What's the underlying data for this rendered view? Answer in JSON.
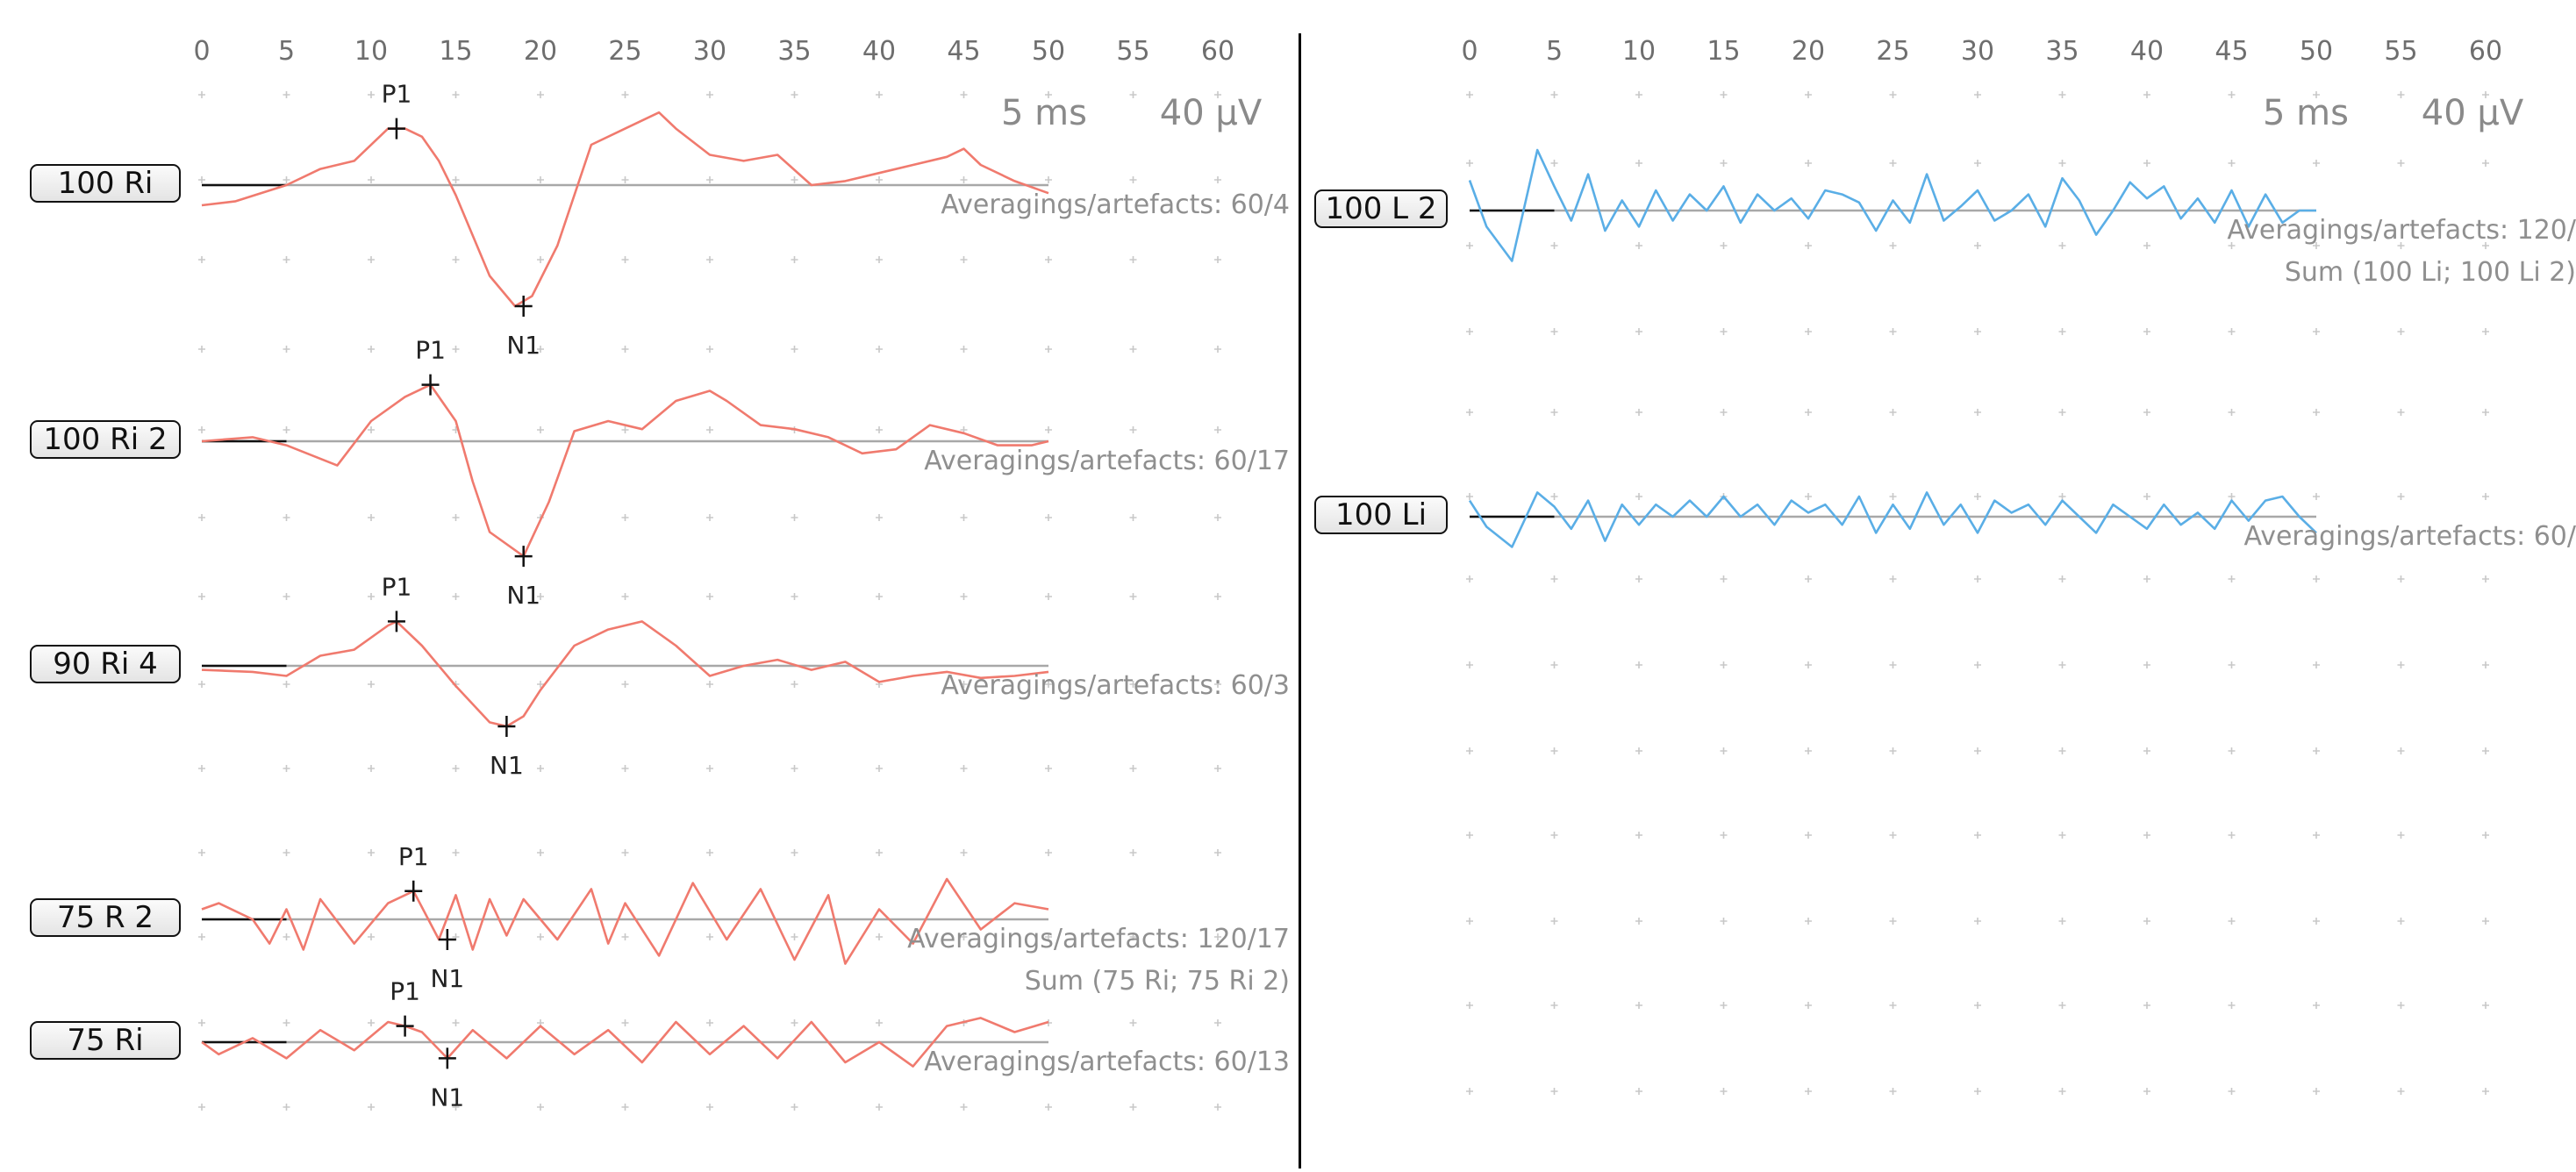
{
  "chart_data": [
    {
      "type": "line",
      "panel": "left",
      "x_ticks": [
        0,
        5,
        10,
        15,
        20,
        25,
        30,
        35,
        40,
        45,
        50,
        55,
        60
      ],
      "xlim": [
        0,
        60
      ],
      "scale": {
        "time": "5 ms",
        "amplitude": "40 µV"
      },
      "grid": true,
      "color": "#f07a6e",
      "channels": [
        {
          "label": "100 Ri",
          "info": [
            "Averagings/artefacts: 60/4"
          ],
          "x": [
            0,
            2,
            5,
            7,
            9,
            11,
            12,
            13,
            14,
            15,
            16,
            17,
            18.5,
            19.5,
            21,
            23,
            25,
            27,
            28,
            30,
            32,
            34,
            36,
            38,
            40,
            42,
            44,
            45,
            46,
            48,
            50
          ],
          "y_offset": [
            -10,
            -8,
            0,
            8,
            12,
            28,
            28,
            24,
            12,
            -5,
            -25,
            -45,
            -60,
            -55,
            -30,
            20,
            28,
            36,
            28,
            15,
            12,
            15,
            0,
            2,
            6,
            10,
            14,
            18,
            10,
            2,
            -4
          ],
          "peaks": [
            {
              "name": "P1",
              "x": 11.5,
              "y": 28,
              "label_pos": "above"
            },
            {
              "name": "N1",
              "x": 19,
              "y": -60,
              "label_pos": "below"
            }
          ]
        },
        {
          "label": "100 Ri 2",
          "info": [
            "Averagings/artefacts: 60/17"
          ],
          "x": [
            0,
            3,
            5,
            8,
            10,
            12,
            13.5,
            15,
            16,
            17,
            19,
            20.5,
            22,
            24,
            26,
            28,
            30,
            31,
            33,
            35,
            37,
            39,
            41,
            43,
            45,
            47,
            49,
            50
          ],
          "y_offset": [
            0,
            2,
            -2,
            -12,
            10,
            22,
            28,
            10,
            -20,
            -45,
            -57,
            -30,
            5,
            10,
            6,
            20,
            25,
            20,
            8,
            6,
            2,
            -6,
            -4,
            8,
            4,
            -2,
            -2,
            0
          ],
          "peaks": [
            {
              "name": "P1",
              "x": 13.5,
              "y": 28,
              "label_pos": "above"
            },
            {
              "name": "N1",
              "x": 19,
              "y": -57,
              "label_pos": "below"
            }
          ]
        },
        {
          "label": "90 Ri 4",
          "info": [
            "Averagings/artefacts: 60/3"
          ],
          "x": [
            0,
            3,
            5,
            7,
            9,
            11,
            11.5,
            13,
            15,
            17,
            18,
            19,
            20,
            22,
            24,
            26,
            28,
            30,
            32,
            34,
            36,
            38,
            40,
            42,
            44,
            46,
            48,
            50
          ],
          "y_offset": [
            -2,
            -3,
            -5,
            5,
            8,
            20,
            22,
            10,
            -10,
            -28,
            -30,
            -25,
            -12,
            10,
            18,
            22,
            10,
            -5,
            0,
            3,
            -2,
            2,
            -8,
            -5,
            -3,
            -6,
            -5,
            -3
          ],
          "peaks": [
            {
              "name": "P1",
              "x": 11.5,
              "y": 22,
              "label_pos": "above"
            },
            {
              "name": "N1",
              "x": 18,
              "y": -30,
              "label_pos": "below"
            }
          ]
        },
        {
          "label": "75 R 2",
          "info": [
            "Averagings/artefacts: 120/17",
            "Sum (75 Ri; 75 Ri 2)"
          ],
          "x": [
            0,
            1,
            3,
            4,
            5,
            6,
            7,
            9,
            11,
            12.5,
            14,
            15,
            16,
            17,
            18,
            19,
            21,
            23,
            24,
            25,
            27,
            29,
            31,
            33,
            35,
            37,
            38,
            40,
            42,
            44,
            46,
            48,
            50
          ],
          "y_offset": [
            5,
            8,
            0,
            -12,
            5,
            -15,
            10,
            -12,
            8,
            14,
            -10,
            12,
            -15,
            10,
            -8,
            10,
            -10,
            15,
            -12,
            8,
            -18,
            18,
            -10,
            15,
            -20,
            12,
            -22,
            5,
            -12,
            20,
            -5,
            8,
            5
          ],
          "peaks": [
            {
              "name": "P1",
              "x": 12.5,
              "y": 14,
              "label_pos": "above"
            },
            {
              "name": "N1",
              "x": 14.5,
              "y": -10,
              "label_pos": "below"
            }
          ]
        },
        {
          "label": "75 Ri",
          "info": [
            "Averagings/artefacts: 60/13"
          ],
          "x": [
            0,
            1,
            3,
            5,
            7,
            9,
            11,
            12,
            13,
            14.5,
            16,
            18,
            20,
            22,
            24,
            26,
            28,
            30,
            32,
            34,
            36,
            38,
            40,
            42,
            44,
            46,
            48,
            50
          ],
          "y_offset": [
            0,
            -6,
            2,
            -8,
            6,
            -4,
            10,
            8,
            5,
            -8,
            6,
            -8,
            8,
            -6,
            6,
            -10,
            10,
            -6,
            8,
            -8,
            10,
            -10,
            0,
            -12,
            8,
            12,
            5,
            10
          ],
          "peaks": [
            {
              "name": "P1",
              "x": 12,
              "y": 8,
              "label_pos": "above"
            },
            {
              "name": "N1",
              "x": 14.5,
              "y": -8,
              "label_pos": "below"
            }
          ]
        }
      ]
    },
    {
      "type": "line",
      "panel": "right",
      "x_ticks": [
        0,
        5,
        10,
        15,
        20,
        25,
        30,
        35,
        40,
        45,
        50,
        55,
        60
      ],
      "xlim": [
        0,
        60
      ],
      "scale": {
        "time": "5 ms",
        "amplitude": "40 µV"
      },
      "grid": true,
      "color": "#5aaee6",
      "channels": [
        {
          "label": "100 L 2",
          "info": [
            "Averagings/artefacts: 120/",
            "Sum (100 Li; 100 Li 2)"
          ],
          "x": [
            0,
            1,
            2.5,
            4,
            5,
            6,
            7,
            8,
            9,
            10,
            11,
            12,
            13,
            14,
            15,
            16,
            17,
            18,
            19,
            20,
            21,
            22,
            23,
            24,
            25,
            26,
            27,
            28,
            29,
            30,
            31,
            32,
            33,
            34,
            35,
            36,
            37,
            38,
            39,
            40,
            41,
            42,
            43,
            44,
            45,
            46,
            47,
            48,
            49,
            50
          ],
          "y_offset": [
            15,
            -8,
            -25,
            30,
            12,
            -5,
            18,
            -10,
            5,
            -8,
            10,
            -5,
            8,
            0,
            12,
            -6,
            8,
            0,
            6,
            -4,
            10,
            8,
            4,
            -10,
            5,
            -6,
            18,
            -5,
            2,
            10,
            -5,
            0,
            8,
            -8,
            16,
            5,
            -12,
            0,
            14,
            6,
            12,
            -4,
            6,
            -6,
            10,
            -8,
            8,
            -6,
            0,
            0
          ],
          "peaks": []
        },
        {
          "label": "100 Li",
          "info": [
            "Averagings/artefacts: 60/"
          ],
          "x": [
            0,
            1,
            2.5,
            4,
            5,
            6,
            7,
            8,
            9,
            10,
            11,
            12,
            13,
            14,
            15,
            16,
            17,
            18,
            19,
            20,
            21,
            22,
            23,
            24,
            25,
            26,
            27,
            28,
            29,
            30,
            31,
            32,
            33,
            34,
            35,
            36,
            37,
            38,
            39,
            40,
            41,
            42,
            43,
            44,
            45,
            46,
            47,
            48,
            49,
            50
          ],
          "y_offset": [
            8,
            -5,
            -15,
            12,
            5,
            -6,
            8,
            -12,
            6,
            -4,
            6,
            0,
            8,
            0,
            10,
            0,
            6,
            -4,
            8,
            2,
            6,
            -4,
            10,
            -8,
            6,
            -6,
            12,
            -4,
            6,
            -8,
            8,
            2,
            6,
            -4,
            8,
            0,
            -8,
            6,
            0,
            -6,
            6,
            -4,
            2,
            -6,
            8,
            -2,
            8,
            10,
            0,
            -8
          ],
          "peaks": []
        }
      ]
    }
  ]
}
